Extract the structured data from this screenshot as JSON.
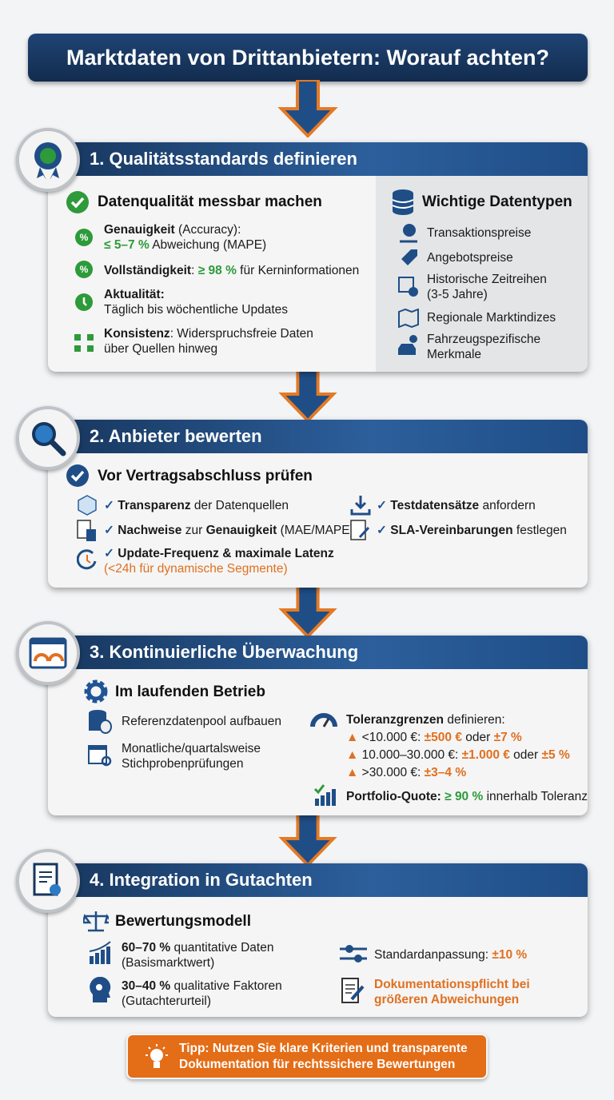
{
  "title": "Marktdaten von Drittanbietern: Worauf achten?",
  "colors": {
    "navy": "#17365d",
    "blue": "#2c5f9c",
    "green": "#2e9a3a",
    "orange": "#e07020",
    "tip": "#e46d17"
  },
  "s1": {
    "header": "1. Qualitätsstandards definieren",
    "icon": "award-badge-icon",
    "left_title": "Datenqualität messbar machen",
    "items": [
      {
        "icon": "percent-icon",
        "segs": [
          {
            "t": "Genauigkeit",
            "s": "b"
          },
          {
            "t": " (Accuracy):"
          },
          {
            "t": "\n"
          },
          {
            "t": "≤ 5–7 %",
            "s": "g"
          },
          {
            "t": " Abweichung (MAPE)"
          }
        ]
      },
      {
        "icon": "percent-icon",
        "segs": [
          {
            "t": "Vollständigkeit",
            "s": "b"
          },
          {
            "t": ": "
          },
          {
            "t": "≥ 98 %",
            "s": "g"
          },
          {
            "t": " für Kerninformationen"
          }
        ]
      },
      {
        "icon": "clock-icon",
        "segs": [
          {
            "t": "Aktualität:",
            "s": "b"
          },
          {
            "t": "\n"
          },
          {
            "t": "Täglich bis wöchentliche Updates"
          }
        ]
      },
      {
        "icon": "network-icon",
        "segs": [
          {
            "t": "Konsistenz",
            "s": "b"
          },
          {
            "t": ": Widerspruchsfreie Daten"
          },
          {
            "t": "\n"
          },
          {
            "t": "über Quellen hinweg"
          }
        ]
      }
    ],
    "right_title": "Wichtige Datentypen",
    "types": [
      {
        "icon": "money-bag-icon",
        "label": "Transaktionspreise"
      },
      {
        "icon": "price-tag-icon",
        "label": "Angebotspreise"
      },
      {
        "icon": "calendar-clock-icon",
        "label": "Historische Zeitreihen\n(3-5 Jahre)"
      },
      {
        "icon": "map-icon",
        "label": "Regionale Marktindizes"
      },
      {
        "icon": "car-gear-icon",
        "label": "Fahrzeugspezifische\nMerkmale"
      }
    ]
  },
  "s2": {
    "header": "2. Anbieter bewerten",
    "icon": "magnifier-icon",
    "sub": "Vor Vertragsabschluss prüfen",
    "items": [
      {
        "icon": "cube-icon",
        "segs": [
          {
            "t": "✓ ",
            "s": "tick"
          },
          {
            "t": "Transparenz",
            "s": "b"
          },
          {
            "t": " der Datenquellen"
          }
        ]
      },
      {
        "icon": "download-icon",
        "segs": [
          {
            "t": "✓ ",
            "s": "tick"
          },
          {
            "t": "Testdatensätze",
            "s": "b"
          },
          {
            "t": " anfordern"
          }
        ]
      },
      {
        "icon": "document-calculator-icon",
        "segs": [
          {
            "t": "✓ ",
            "s": "tick"
          },
          {
            "t": "Nachweise",
            "s": "b"
          },
          {
            "t": " zur "
          },
          {
            "t": "Genauigkeit",
            "s": "b"
          },
          {
            "t": " (MAE/MAPE)"
          }
        ]
      },
      {
        "icon": "contract-sign-icon",
        "segs": [
          {
            "t": "✓ ",
            "s": "tick"
          },
          {
            "t": "SLA-Vereinbarungen",
            "s": "b"
          },
          {
            "t": " festlegen"
          }
        ]
      },
      {
        "icon": "refresh-clock-icon",
        "segs": [
          {
            "t": "✓ ",
            "s": "tick"
          },
          {
            "t": "Update-Frequenz & maximale Latenz",
            "s": "b"
          },
          {
            "t": "\n"
          },
          {
            "t": "(<24h für dynamische Segmente)",
            "s": "on"
          }
        ]
      }
    ]
  },
  "s3": {
    "header": "3. Kontinuierliche Überwachung",
    "icon": "dashboard-icon",
    "sub": "Im laufenden Betrieb",
    "left": [
      {
        "icon": "database-icon",
        "label": "Referenzdatenpool aufbauen"
      },
      {
        "icon": "calendar-search-icon",
        "label": "Monatliche/quartalsweise\nStichprobenprüfungen"
      }
    ],
    "tol_title": [
      {
        "t": "Toleranzgrenzen",
        "s": "b"
      },
      {
        "t": " definieren:"
      }
    ],
    "tol": [
      [
        {
          "t": "<10.000 €: "
        },
        {
          "t": "±500 €",
          "s": "o"
        },
        {
          "t": " oder "
        },
        {
          "t": "±7 %",
          "s": "o"
        }
      ],
      [
        {
          "t": "10.000–30.000 €: "
        },
        {
          "t": "±1.000 €",
          "s": "o"
        },
        {
          "t": " oder "
        },
        {
          "t": "±5 %",
          "s": "o"
        }
      ],
      [
        {
          "t": ">30.000 €: "
        },
        {
          "t": "±3–4 %",
          "s": "o"
        }
      ]
    ],
    "portfolio": [
      {
        "t": "Portfolio-Quote: ",
        "s": "b"
      },
      {
        "t": "≥ 90 %",
        "s": "g"
      },
      {
        "t": " innerhalb Toleranz"
      }
    ]
  },
  "s4": {
    "header": "4. Integration in Gutachten",
    "icon": "certificate-document-icon",
    "sub": "Bewertungsmodell",
    "items": [
      {
        "icon": "growth-chart-icon",
        "segs": [
          {
            "t": "60–70 %",
            "s": "b"
          },
          {
            "t": " quantitative Daten"
          },
          {
            "t": "\n"
          },
          {
            "t": "(Basismarktwert)"
          }
        ]
      },
      {
        "icon": "slider-icon",
        "segs": [
          {
            "t": "Standardanpassung: "
          },
          {
            "t": "±10 %",
            "s": "o"
          }
        ]
      },
      {
        "icon": "head-gears-icon",
        "segs": [
          {
            "t": "30–40 %",
            "s": "b"
          },
          {
            "t": " qualitative Faktoren"
          },
          {
            "t": "\n"
          },
          {
            "t": "(Gutachterurteil)"
          }
        ]
      },
      {
        "icon": "document-pen-icon",
        "segs": [
          {
            "t": "Dokumentationspflicht bei\ngrößeren Abweichungen",
            "s": "o"
          }
        ]
      }
    ]
  },
  "tip": "Tipp: Nutzen Sie klare Kriterien und transparente\nDokumentation für rechtssichere Bewertungen"
}
